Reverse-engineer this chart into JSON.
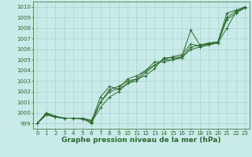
{
  "x": [
    0,
    1,
    2,
    3,
    4,
    5,
    6,
    7,
    8,
    9,
    10,
    11,
    12,
    13,
    14,
    15,
    16,
    17,
    18,
    19,
    20,
    21,
    22,
    23
  ],
  "series": [
    [
      999.0,
      999.8,
      999.6,
      999.5,
      999.5,
      999.5,
      999.0,
      1001.0,
      1002.2,
      1002.5,
      1003.0,
      1003.2,
      1003.5,
      1004.2,
      1005.2,
      1005.2,
      1005.3,
      1007.8,
      1006.4,
      1006.6,
      1006.7,
      1009.4,
      1009.7,
      1010.0
    ],
    [
      999.0,
      1000.0,
      999.6,
      999.5,
      999.5,
      999.5,
      999.2,
      1001.5,
      1002.5,
      1002.2,
      1002.8,
      1003.0,
      1003.8,
      1004.5,
      1005.0,
      1005.3,
      1005.5,
      1006.5,
      1006.3,
      1006.5,
      1006.6,
      1008.0,
      1009.5,
      1010.0
    ],
    [
      999.0,
      1000.0,
      999.7,
      999.5,
      999.5,
      999.5,
      999.3,
      1001.0,
      1002.0,
      1002.3,
      1003.2,
      1003.5,
      1004.0,
      1004.8,
      1004.8,
      1005.0,
      1005.3,
      1006.2,
      1006.4,
      1006.5,
      1006.7,
      1009.0,
      1009.6,
      1009.9
    ],
    [
      999.0,
      999.9,
      999.6,
      999.5,
      999.5,
      999.4,
      999.1,
      1000.5,
      1001.5,
      1002.0,
      1002.8,
      1003.2,
      1004.0,
      1004.5,
      1005.0,
      1005.0,
      1005.2,
      1006.0,
      1006.2,
      1006.4,
      1006.6,
      1008.8,
      1009.4,
      1009.9
    ]
  ],
  "line_color": "#2d6a2d",
  "marker": "+",
  "markersize": 3,
  "linewidth": 0.7,
  "bg_color": "#c8eae8",
  "grid_color": "#a8cac8",
  "ylabel_ticks": [
    999,
    1000,
    1001,
    1002,
    1003,
    1004,
    1005,
    1006,
    1007,
    1008,
    1009,
    1010
  ],
  "xlim": [
    -0.5,
    23.5
  ],
  "ylim": [
    998.5,
    1010.5
  ],
  "xlabel": "Graphe pression niveau de la mer (hPa)",
  "xlabel_fontsize": 6.5,
  "tick_fontsize": 5.0
}
